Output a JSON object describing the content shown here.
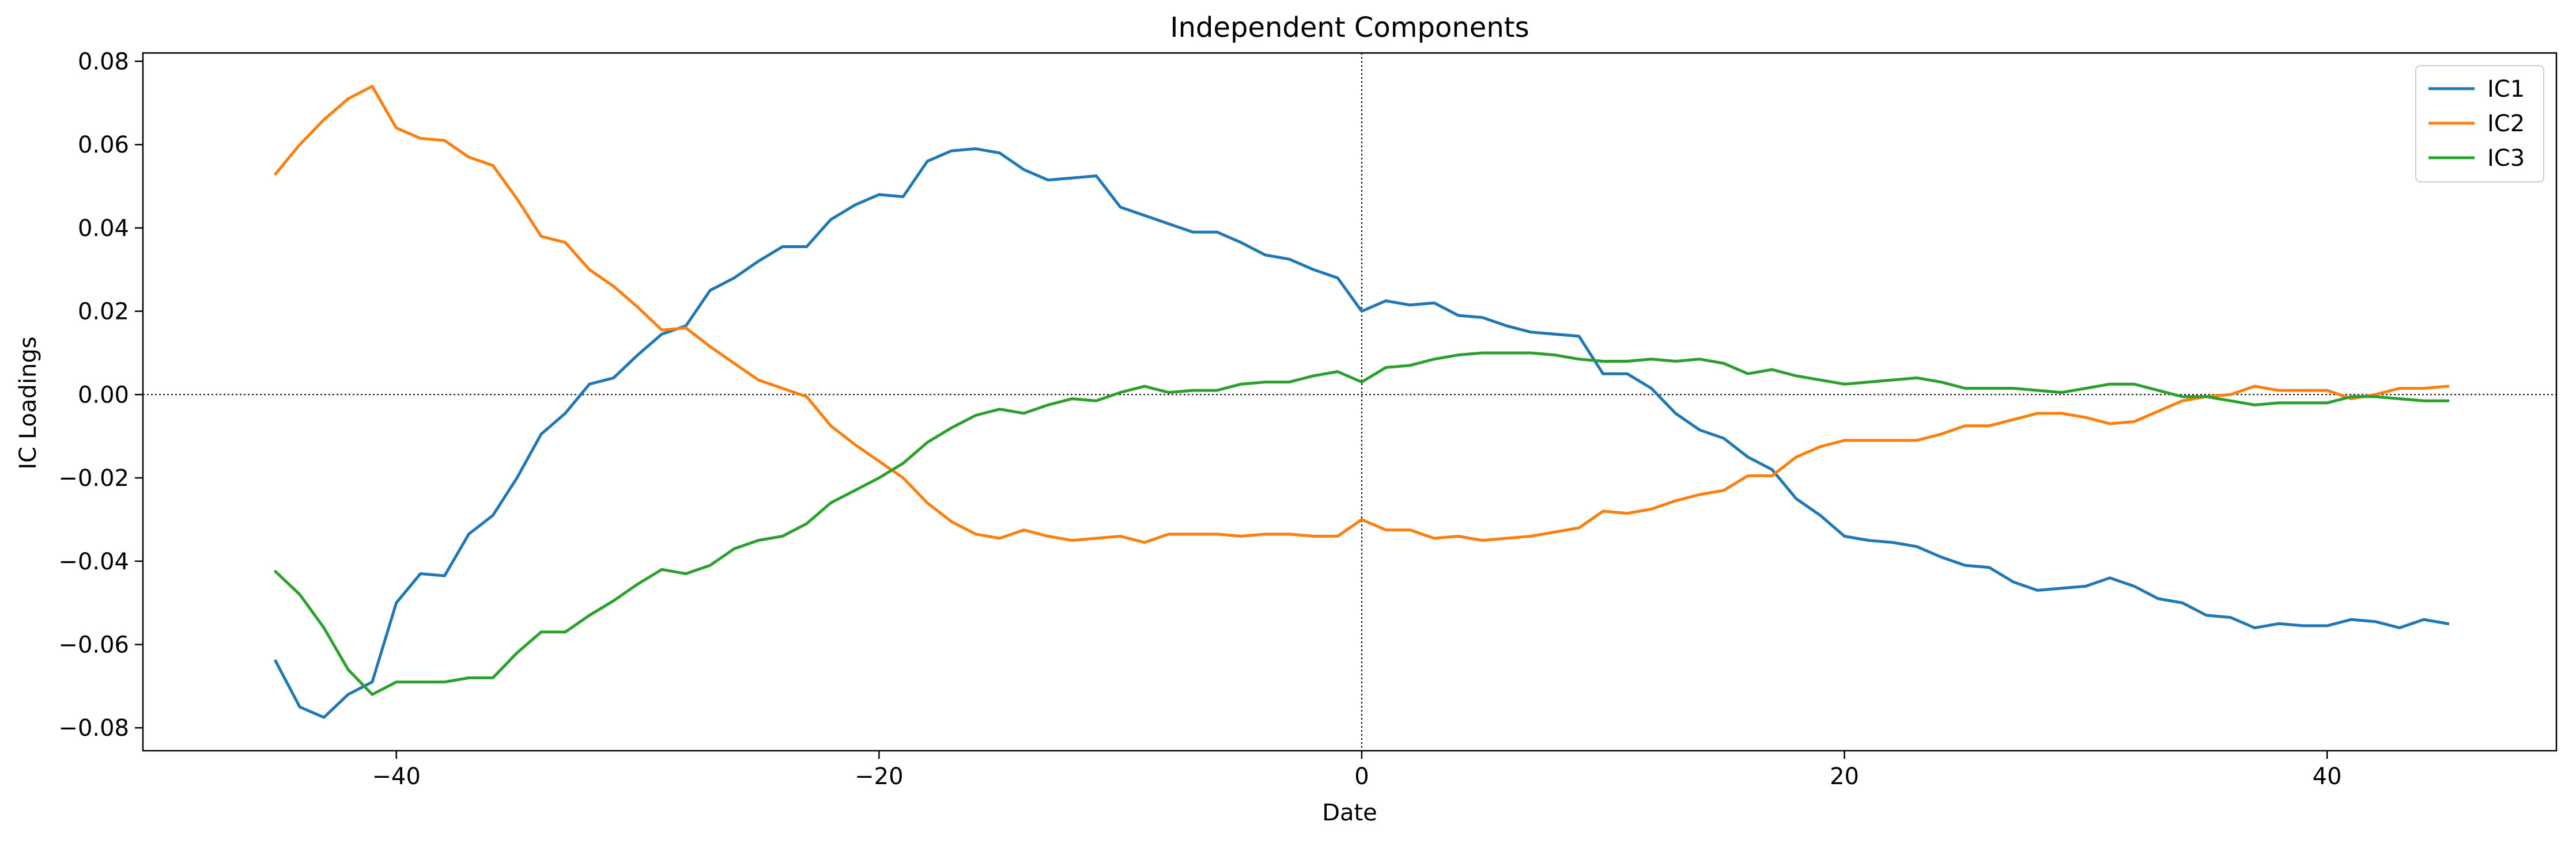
{
  "chart_data": {
    "type": "line",
    "title": "Independent Components",
    "xlabel": "Date",
    "ylabel": "IC Loadings",
    "xlim": [
      -50.5,
      49.5
    ],
    "ylim": [
      -0.0855,
      0.082
    ],
    "xticks": [
      -40,
      -20,
      0,
      20,
      40
    ],
    "xtick_labels": [
      "−40",
      "−20",
      "0",
      "20",
      "40"
    ],
    "yticks": [
      -0.08,
      -0.06,
      -0.04,
      -0.02,
      0.0,
      0.02,
      0.04,
      0.06,
      0.08
    ],
    "ytick_labels": [
      "−0.08",
      "−0.06",
      "−0.04",
      "−0.02",
      "0.00",
      "0.02",
      "0.04",
      "0.06",
      "0.08"
    ],
    "grid": false,
    "reference_lines": {
      "x": 0,
      "y": 0,
      "style": "dotted"
    },
    "legend": {
      "position": "top-right"
    },
    "x": [
      -45,
      -44,
      -43,
      -42,
      -41,
      -40,
      -39,
      -38,
      -37,
      -36,
      -35,
      -34,
      -33,
      -32,
      -31,
      -30,
      -29,
      -28,
      -27,
      -26,
      -25,
      -24,
      -23,
      -22,
      -21,
      -20,
      -19,
      -18,
      -17,
      -16,
      -15,
      -14,
      -13,
      -12,
      -11,
      -10,
      -9,
      -8,
      -7,
      -6,
      -5,
      -4,
      -3,
      -2,
      -1,
      0,
      1,
      2,
      3,
      4,
      5,
      6,
      7,
      8,
      9,
      10,
      11,
      12,
      13,
      14,
      15,
      16,
      17,
      18,
      19,
      20,
      21,
      22,
      23,
      24,
      25,
      26,
      27,
      28,
      29,
      30,
      31,
      32,
      33,
      34,
      35,
      36,
      37,
      38,
      39,
      40,
      41,
      42,
      43,
      44,
      45
    ],
    "series": [
      {
        "name": "IC1",
        "color": "#1f77b4",
        "values": [
          -0.064,
          -0.075,
          -0.0775,
          -0.072,
          -0.069,
          -0.05,
          -0.043,
          -0.0435,
          -0.0335,
          -0.029,
          -0.02,
          -0.0095,
          -0.0045,
          0.0025,
          0.004,
          0.0095,
          0.0145,
          0.0165,
          0.025,
          0.028,
          0.032,
          0.0355,
          0.0355,
          0.042,
          0.0455,
          0.048,
          0.0475,
          0.056,
          0.0585,
          0.059,
          0.058,
          0.054,
          0.0515,
          0.052,
          0.0525,
          0.045,
          0.043,
          0.041,
          0.039,
          0.039,
          0.0365,
          0.0335,
          0.0325,
          0.03,
          0.028,
          0.02,
          0.0225,
          0.0215,
          0.022,
          0.019,
          0.0185,
          0.0165,
          0.015,
          0.0145,
          0.014,
          0.005,
          0.005,
          0.0015,
          -0.0045,
          -0.0085,
          -0.0105,
          -0.015,
          -0.018,
          -0.025,
          -0.029,
          -0.034,
          -0.035,
          -0.0355,
          -0.0365,
          -0.039,
          -0.041,
          -0.0415,
          -0.045,
          -0.047,
          -0.0465,
          -0.046,
          -0.044,
          -0.046,
          -0.049,
          -0.05,
          -0.053,
          -0.0535,
          -0.056,
          -0.055,
          -0.0555,
          -0.0555,
          -0.054,
          -0.0545,
          -0.056,
          -0.054,
          -0.055
        ]
      },
      {
        "name": "IC2",
        "color": "#ff7f0e",
        "values": [
          0.053,
          0.06,
          0.066,
          0.071,
          0.074,
          0.064,
          0.0615,
          0.061,
          0.057,
          0.055,
          0.047,
          0.038,
          0.0365,
          0.03,
          0.026,
          0.021,
          0.0155,
          0.016,
          0.0115,
          0.0075,
          0.0035,
          0.0015,
          -0.0005,
          -0.0075,
          -0.012,
          -0.016,
          -0.02,
          -0.026,
          -0.0305,
          -0.0335,
          -0.0345,
          -0.0325,
          -0.034,
          -0.035,
          -0.0345,
          -0.034,
          -0.0355,
          -0.0335,
          -0.0335,
          -0.0335,
          -0.034,
          -0.0335,
          -0.0335,
          -0.034,
          -0.034,
          -0.03,
          -0.0325,
          -0.0325,
          -0.0345,
          -0.034,
          -0.035,
          -0.0345,
          -0.034,
          -0.033,
          -0.032,
          -0.028,
          -0.0285,
          -0.0275,
          -0.0255,
          -0.024,
          -0.023,
          -0.0195,
          -0.0195,
          -0.015,
          -0.0125,
          -0.011,
          -0.011,
          -0.011,
          -0.011,
          -0.0095,
          -0.0075,
          -0.0075,
          -0.006,
          -0.0045,
          -0.0045,
          -0.0055,
          -0.007,
          -0.0065,
          -0.004,
          -0.0015,
          -0.0005,
          0.0,
          0.002,
          0.001,
          0.001,
          0.001,
          -0.001,
          0.0,
          0.0015,
          0.0015,
          0.002
        ]
      },
      {
        "name": "IC3",
        "color": "#2ca02c",
        "values": [
          -0.0425,
          -0.048,
          -0.056,
          -0.066,
          -0.072,
          -0.069,
          -0.069,
          -0.069,
          -0.068,
          -0.068,
          -0.062,
          -0.057,
          -0.057,
          -0.053,
          -0.0495,
          -0.0455,
          -0.042,
          -0.043,
          -0.041,
          -0.037,
          -0.035,
          -0.034,
          -0.031,
          -0.026,
          -0.023,
          -0.02,
          -0.0165,
          -0.0115,
          -0.008,
          -0.005,
          -0.0035,
          -0.0045,
          -0.0025,
          -0.001,
          -0.0015,
          0.0005,
          0.002,
          0.0005,
          0.001,
          0.001,
          0.0025,
          0.003,
          0.003,
          0.0045,
          0.0055,
          0.003,
          0.0065,
          0.007,
          0.0085,
          0.0095,
          0.01,
          0.01,
          0.01,
          0.0095,
          0.0085,
          0.008,
          0.008,
          0.0085,
          0.008,
          0.0085,
          0.0075,
          0.005,
          0.006,
          0.0045,
          0.0035,
          0.0025,
          0.003,
          0.0035,
          0.004,
          0.003,
          0.0015,
          0.0015,
          0.0015,
          0.001,
          0.0005,
          0.0015,
          0.0025,
          0.0025,
          0.001,
          -0.0005,
          -0.0005,
          -0.0015,
          -0.0025,
          -0.002,
          -0.002,
          -0.002,
          -0.0005,
          -0.0005,
          -0.001,
          -0.0015,
          -0.0015
        ]
      }
    ]
  }
}
